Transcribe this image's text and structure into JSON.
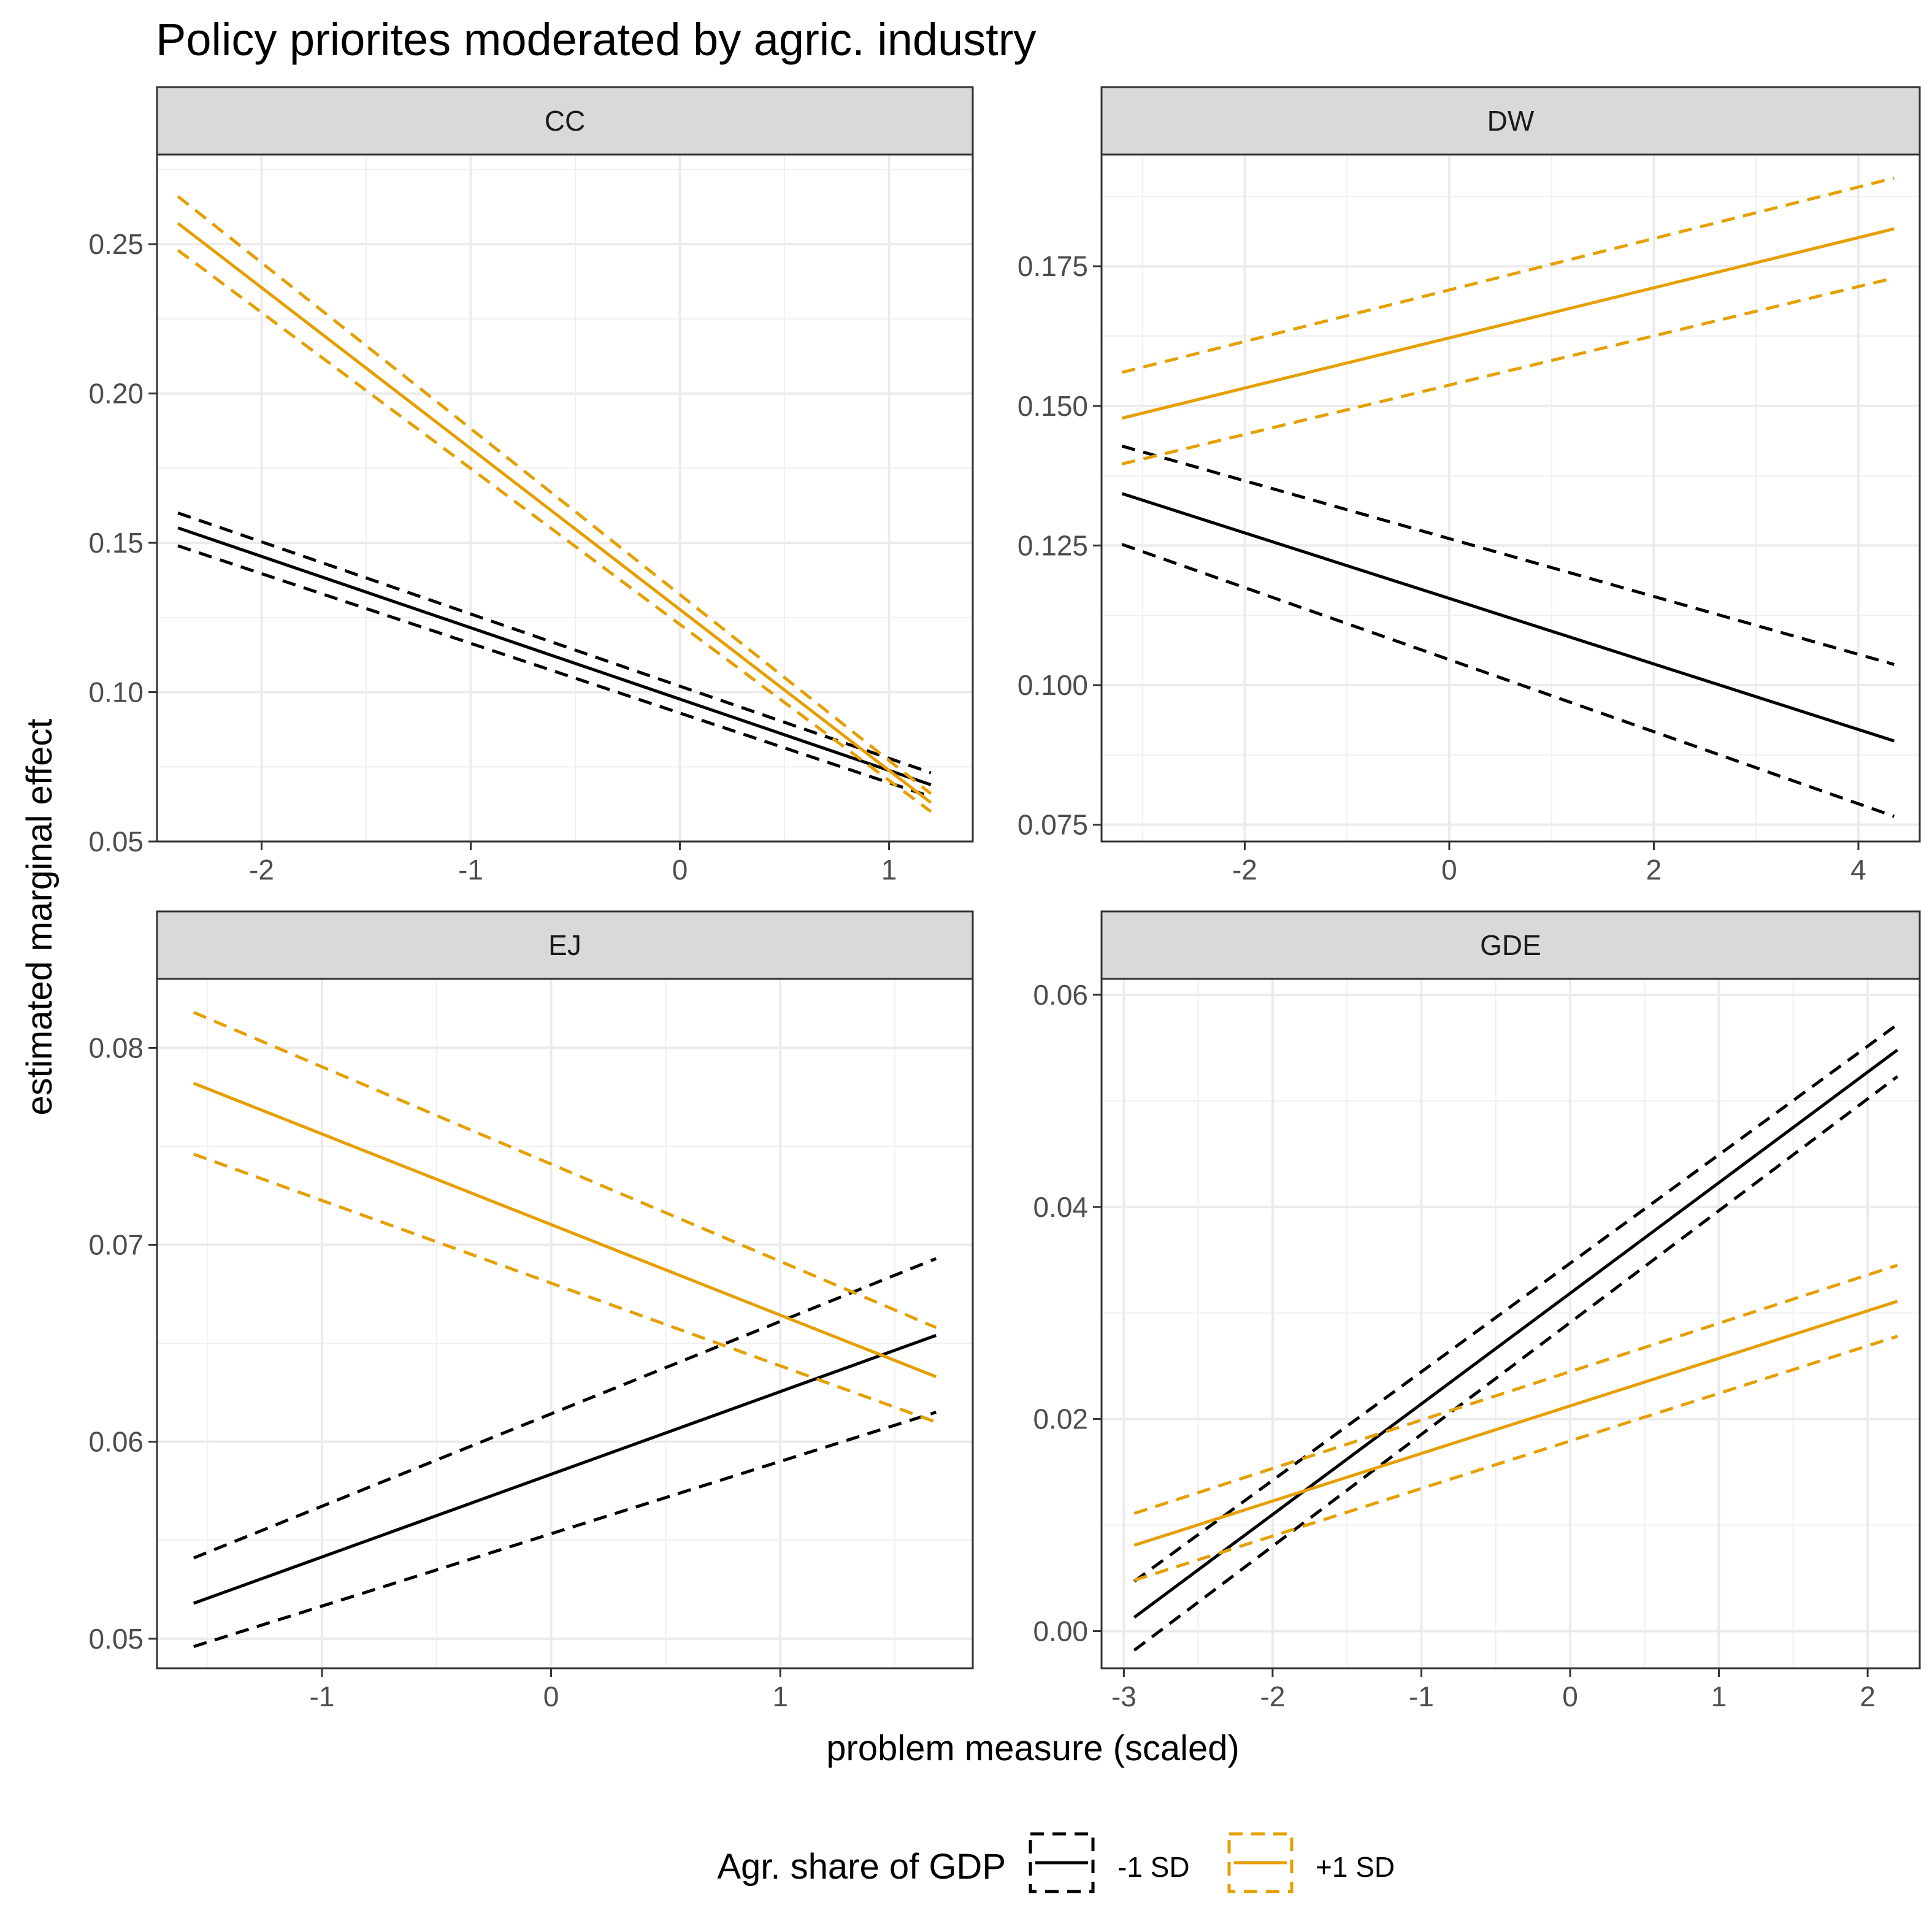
{
  "title": "Policy priorites moderated by agric. industry",
  "xlabel": "problem measure (scaled)",
  "ylabel": "estimated marginal effect",
  "legend": {
    "title": "Agr. share of GDP",
    "placement": "bottom",
    "entries": [
      {
        "label": "-1 SD",
        "color": "#000000"
      },
      {
        "label": "+1 SD",
        "color": "#E69F00"
      }
    ]
  },
  "chart_data": [
    {
      "type": "line",
      "panel": "CC",
      "xlim": [
        -2.5,
        1.4
      ],
      "ylim": [
        0.05,
        0.28
      ],
      "xticks": [
        -2,
        -1,
        0,
        1
      ],
      "xtick_labels": [
        "-2",
        "-1",
        "0",
        "1"
      ],
      "yticks": [
        0.05,
        0.1,
        0.15,
        0.2,
        0.25
      ],
      "ytick_labels": [
        "0.05",
        "0.10",
        "0.15",
        "0.20",
        "0.25"
      ],
      "grid": true,
      "series": [
        {
          "name": "-1 SD",
          "color": "#000000",
          "x": [
            -2.4,
            1.2
          ],
          "fit": [
            0.155,
            0.069
          ],
          "lower": [
            0.149,
            0.065
          ],
          "upper": [
            0.16,
            0.073
          ]
        },
        {
          "name": "+1 SD",
          "color": "#E69F00",
          "x": [
            -2.4,
            1.2
          ],
          "fit": [
            0.257,
            0.063
          ],
          "lower": [
            0.248,
            0.06
          ],
          "upper": [
            0.266,
            0.066
          ]
        }
      ]
    },
    {
      "type": "line",
      "panel": "DW",
      "xlim": [
        -3.4,
        4.6
      ],
      "ylim": [
        0.072,
        0.195
      ],
      "xticks": [
        -2,
        0,
        2,
        4
      ],
      "xtick_labels": [
        "-2",
        "0",
        "2",
        "4"
      ],
      "yticks": [
        0.075,
        0.1,
        0.125,
        0.15,
        0.175
      ],
      "ytick_labels": [
        "0.075",
        "0.100",
        "0.125",
        "0.150",
        "0.175"
      ],
      "grid": true,
      "series": [
        {
          "name": "-1 SD",
          "color": "#000000",
          "x": [
            -3.2,
            4.35
          ],
          "fit": [
            0.1343,
            0.09
          ],
          "lower": [
            0.1252,
            0.0765
          ],
          "upper": [
            0.1428,
            0.1037
          ]
        },
        {
          "name": "+1 SD",
          "color": "#E69F00",
          "x": [
            -3.2,
            4.35
          ],
          "fit": [
            0.1478,
            0.1817
          ],
          "lower": [
            0.1396,
            0.1729
          ],
          "upper": [
            0.156,
            0.1908
          ]
        }
      ]
    },
    {
      "type": "line",
      "panel": "EJ",
      "xlim": [
        -1.72,
        1.84
      ],
      "ylim": [
        0.0485,
        0.0835
      ],
      "xticks": [
        -1,
        0,
        1
      ],
      "xtick_labels": [
        "-1",
        "0",
        "1"
      ],
      "yticks": [
        0.05,
        0.06,
        0.07,
        0.08
      ],
      "ytick_labels": [
        "0.05",
        "0.06",
        "0.07",
        "0.08"
      ],
      "grid": true,
      "series": [
        {
          "name": "-1 SD",
          "color": "#000000",
          "x": [
            -1.56,
            1.68
          ],
          "fit": [
            0.0518,
            0.0654
          ],
          "lower": [
            0.0496,
            0.0615
          ],
          "upper": [
            0.0541,
            0.0693
          ]
        },
        {
          "name": "+1 SD",
          "color": "#E69F00",
          "x": [
            -1.56,
            1.68
          ],
          "fit": [
            0.0782,
            0.0633
          ],
          "lower": [
            0.0746,
            0.061
          ],
          "upper": [
            0.0818,
            0.0658
          ]
        }
      ]
    },
    {
      "type": "line",
      "panel": "GDE",
      "xlim": [
        -3.15,
        2.35
      ],
      "ylim": [
        -0.0035,
        0.0615
      ],
      "xticks": [
        -3,
        -2,
        -1,
        0,
        1,
        2
      ],
      "xtick_labels": [
        "-3",
        "-2",
        "-1",
        "0",
        "1",
        "2"
      ],
      "yticks": [
        0.0,
        0.02,
        0.04,
        0.06
      ],
      "ytick_labels": [
        "0.00",
        "0.02",
        "0.04",
        "0.06"
      ],
      "grid": true,
      "series": [
        {
          "name": "-1 SD",
          "color": "#000000",
          "x": [
            -2.93,
            2.2
          ],
          "fit": [
            0.0013,
            0.0548
          ],
          "lower": [
            -0.0018,
            0.0523
          ],
          "upper": [
            0.0047,
            0.0572
          ]
        },
        {
          "name": "+1 SD",
          "color": "#E69F00",
          "x": [
            -2.93,
            2.2
          ],
          "fit": [
            0.0081,
            0.0311
          ],
          "lower": [
            0.0048,
            0.0278
          ],
          "upper": [
            0.0111,
            0.0345
          ]
        }
      ]
    }
  ]
}
